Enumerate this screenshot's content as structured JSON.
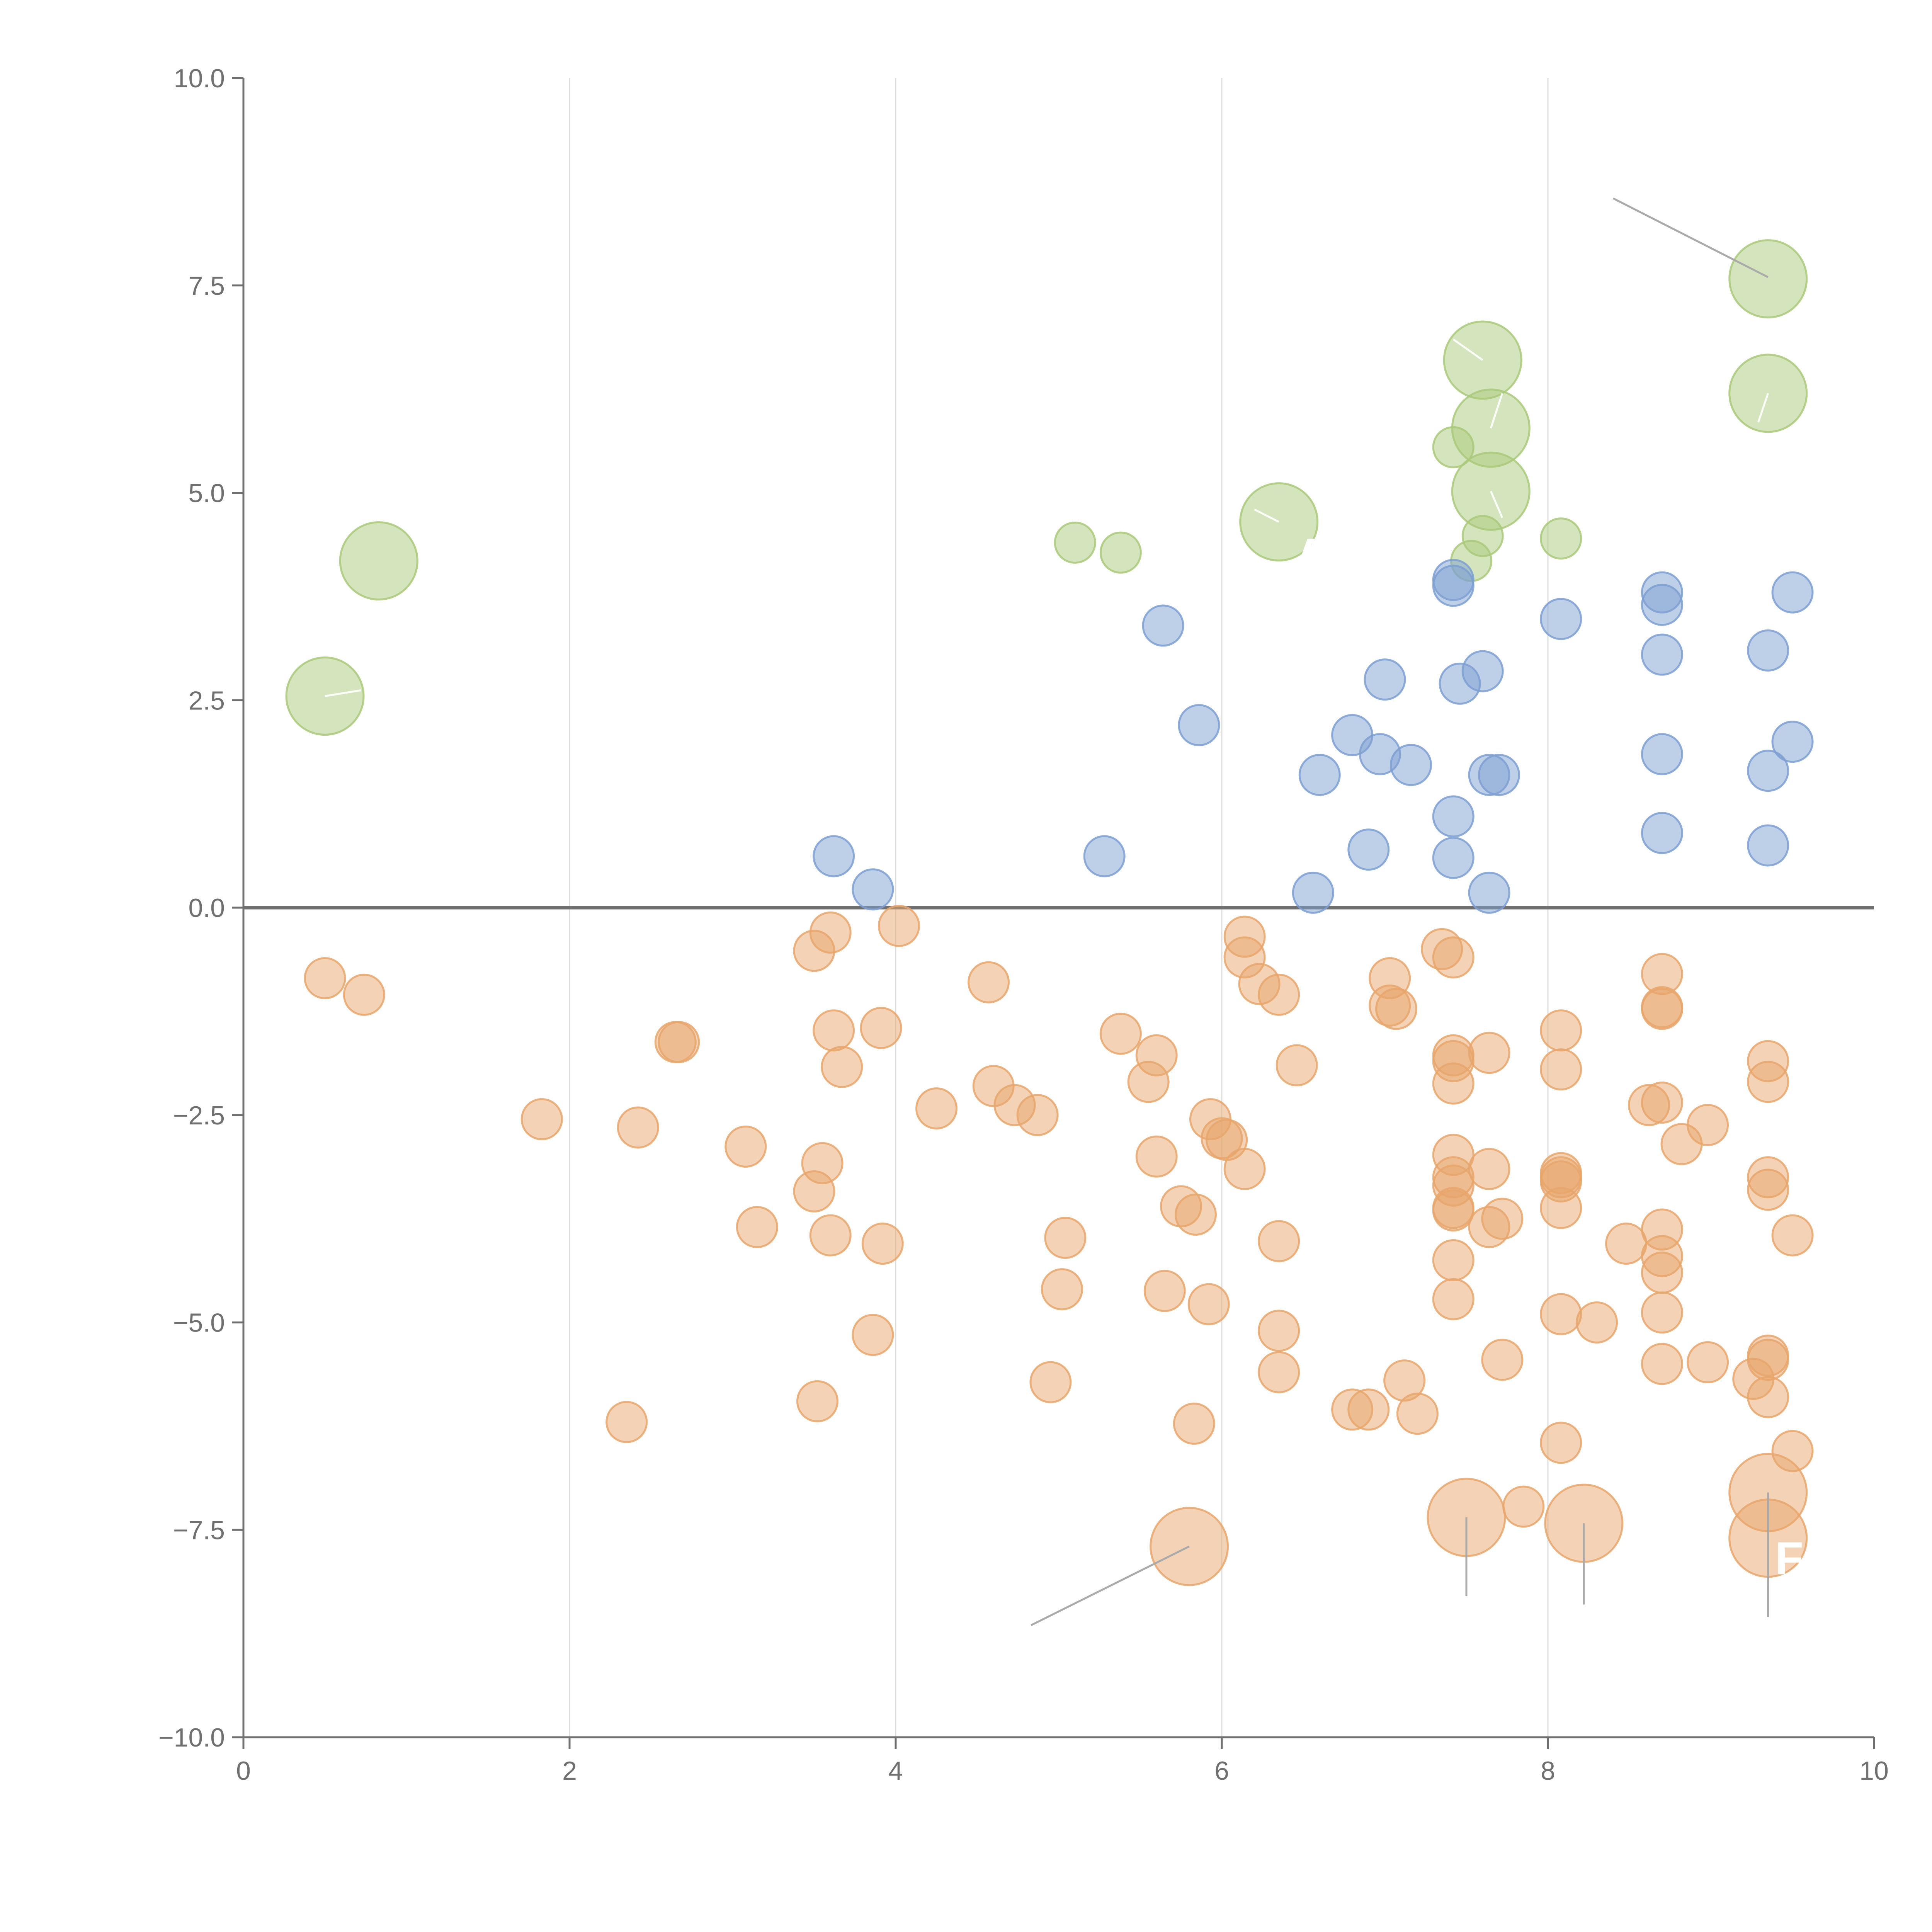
{
  "chart_data": {
    "type": "scatter",
    "title": "",
    "xlabel": "",
    "ylabel": "",
    "xlim": [
      0,
      10
    ],
    "ylim": [
      -10,
      10
    ],
    "x_ticks": [
      "0",
      "2",
      "4",
      "6",
      "8",
      "10"
    ],
    "x_tick_values": [
      0,
      2,
      4,
      6,
      8,
      10
    ],
    "y_ticks": [
      "10.0",
      "7.5",
      "5.0",
      "2.5",
      "0.0",
      "−2.5",
      "−5.0",
      "−7.5",
      "−10.0"
    ],
    "y_tick_values": [
      10,
      7.5,
      5,
      2.5,
      0,
      -2.5,
      -5,
      -7.5,
      -10
    ],
    "grid": "vertical",
    "legend": "none",
    "reference_line_y": 0,
    "colors": {
      "green": "#a9c97a",
      "blue": "#7d9fd2",
      "orange": "#e8a66b",
      "axis": "#707070",
      "grid": "#dddddd",
      "leader": "#aaaaaa",
      "label": "#ffffff"
    },
    "series": [
      {
        "name": "green",
        "color": "#a9c97a",
        "points": [
          [
            0.5,
            2.55,
            2
          ],
          [
            0.83,
            4.18,
            2
          ],
          [
            5.1,
            4.4,
            1
          ],
          [
            5.38,
            4.28,
            1
          ],
          [
            6.35,
            4.65,
            2
          ],
          [
            7.42,
            5.55,
            1
          ],
          [
            7.53,
            4.18,
            1
          ],
          [
            7.6,
            4.48,
            1
          ],
          [
            7.6,
            6.6,
            2
          ],
          [
            7.65,
            5.78,
            2
          ],
          [
            7.65,
            5.02,
            2
          ],
          [
            8.08,
            4.45,
            1
          ],
          [
            9.35,
            7.58,
            2
          ],
          [
            9.35,
            6.2,
            2
          ]
        ]
      },
      {
        "name": "blue",
        "color": "#7d9fd2",
        "points": [
          [
            3.62,
            0.62,
            1
          ],
          [
            3.86,
            0.22,
            1
          ],
          [
            5.28,
            0.62,
            1
          ],
          [
            5.64,
            3.4,
            1
          ],
          [
            5.86,
            2.2,
            1
          ],
          [
            6.56,
            0.18,
            1
          ],
          [
            6.6,
            1.6,
            1
          ],
          [
            6.8,
            2.08,
            1
          ],
          [
            6.9,
            0.7,
            1
          ],
          [
            6.97,
            1.85,
            1
          ],
          [
            7.0,
            2.75,
            1
          ],
          [
            7.16,
            1.72,
            1
          ],
          [
            7.42,
            3.95,
            1
          ],
          [
            7.42,
            3.88,
            1
          ],
          [
            7.42,
            1.1,
            1
          ],
          [
            7.42,
            0.6,
            1
          ],
          [
            7.46,
            2.7,
            1
          ],
          [
            7.6,
            2.85,
            1
          ],
          [
            7.64,
            1.6,
            1
          ],
          [
            7.7,
            1.6,
            1
          ],
          [
            7.64,
            0.18,
            1
          ],
          [
            8.08,
            3.48,
            1
          ],
          [
            8.7,
            3.8,
            1
          ],
          [
            8.7,
            3.65,
            1
          ],
          [
            8.7,
            3.05,
            1
          ],
          [
            8.7,
            1.85,
            1
          ],
          [
            8.7,
            0.9,
            1
          ],
          [
            9.35,
            3.1,
            1
          ],
          [
            9.35,
            1.65,
            1
          ],
          [
            9.35,
            0.75,
            1
          ],
          [
            9.5,
            3.8,
            1
          ],
          [
            9.5,
            2.0,
            1
          ]
        ]
      },
      {
        "name": "orange",
        "color": "#e8a66b",
        "points": [
          [
            0.5,
            -0.85,
            1
          ],
          [
            0.74,
            -1.05,
            1
          ],
          [
            1.83,
            -2.55,
            1
          ],
          [
            2.35,
            -6.2,
            1
          ],
          [
            2.42,
            -2.65,
            1
          ],
          [
            2.65,
            -1.62,
            1
          ],
          [
            2.67,
            -1.62,
            1
          ],
          [
            3.08,
            -2.88,
            1
          ],
          [
            3.15,
            -3.85,
            1
          ],
          [
            3.5,
            -0.52,
            1
          ],
          [
            3.52,
            -5.95,
            1
          ],
          [
            3.5,
            -3.42,
            1
          ],
          [
            3.55,
            -3.08,
            1
          ],
          [
            3.6,
            -0.3,
            1
          ],
          [
            3.6,
            -3.95,
            1
          ],
          [
            3.62,
            -1.48,
            1
          ],
          [
            3.67,
            -1.92,
            1
          ],
          [
            3.86,
            -5.15,
            1
          ],
          [
            3.91,
            -1.45,
            1
          ],
          [
            3.92,
            -4.05,
            1
          ],
          [
            4.02,
            -0.22,
            1
          ],
          [
            4.25,
            -2.42,
            1
          ],
          [
            4.57,
            -0.9,
            1
          ],
          [
            4.6,
            -2.15,
            1
          ],
          [
            4.73,
            -2.38,
            1
          ],
          [
            4.87,
            -2.5,
            1
          ],
          [
            4.95,
            -5.72,
            1
          ],
          [
            5.02,
            -4.6,
            1
          ],
          [
            5.04,
            -3.98,
            1
          ],
          [
            5.38,
            -1.52,
            1
          ],
          [
            5.55,
            -2.1,
            1
          ],
          [
            5.6,
            -1.78,
            1
          ],
          [
            5.6,
            -3.0,
            1
          ],
          [
            5.65,
            -4.62,
            1
          ],
          [
            5.75,
            -3.6,
            1
          ],
          [
            5.84,
            -3.7,
            1
          ],
          [
            5.83,
            -6.22,
            1
          ],
          [
            5.92,
            -4.78,
            1
          ],
          [
            5.93,
            -2.55,
            1
          ],
          [
            6.0,
            -2.78,
            1
          ],
          [
            6.03,
            -2.8,
            1
          ],
          [
            6.14,
            -0.35,
            1
          ],
          [
            6.14,
            -0.6,
            1
          ],
          [
            6.14,
            -3.15,
            1
          ],
          [
            6.23,
            -0.92,
            1
          ],
          [
            6.35,
            -1.05,
            1
          ],
          [
            6.35,
            -4.02,
            1
          ],
          [
            6.35,
            -5.1,
            1
          ],
          [
            6.35,
            -5.6,
            1
          ],
          [
            6.46,
            -1.9,
            1
          ],
          [
            6.8,
            -6.05,
            1
          ],
          [
            6.9,
            -6.05,
            1
          ],
          [
            7.03,
            -0.85,
            1
          ],
          [
            7.03,
            -1.18,
            1
          ],
          [
            7.07,
            -1.22,
            1
          ],
          [
            7.12,
            -5.7,
            1
          ],
          [
            7.2,
            -6.1,
            1
          ],
          [
            7.35,
            -0.5,
            1
          ],
          [
            7.42,
            -0.6,
            1
          ],
          [
            7.42,
            -1.78,
            1
          ],
          [
            7.42,
            -1.85,
            1
          ],
          [
            7.42,
            -2.12,
            1
          ],
          [
            7.42,
            -2.98,
            1
          ],
          [
            7.42,
            -3.25,
            1
          ],
          [
            7.42,
            -3.35,
            1
          ],
          [
            7.42,
            -3.62,
            1
          ],
          [
            7.42,
            -3.65,
            1
          ],
          [
            7.42,
            -4.25,
            1
          ],
          [
            7.42,
            -4.72,
            1
          ],
          [
            7.64,
            -1.75,
            1
          ],
          [
            7.64,
            -3.15,
            1
          ],
          [
            7.64,
            -3.85,
            1
          ],
          [
            7.72,
            -3.75,
            1
          ],
          [
            7.72,
            -5.45,
            1
          ],
          [
            7.85,
            -7.22,
            1
          ],
          [
            8.08,
            -1.48,
            1
          ],
          [
            8.08,
            -1.95,
            1
          ],
          [
            8.08,
            -3.2,
            1
          ],
          [
            8.08,
            -3.25,
            1
          ],
          [
            8.08,
            -3.3,
            1
          ],
          [
            8.08,
            -3.62,
            1
          ],
          [
            8.08,
            -4.9,
            1
          ],
          [
            8.08,
            -6.45,
            1
          ],
          [
            8.3,
            -5.0,
            1
          ],
          [
            8.48,
            -4.05,
            1
          ],
          [
            8.62,
            -2.38,
            1
          ],
          [
            8.7,
            -0.8,
            1
          ],
          [
            8.7,
            -1.2,
            1
          ],
          [
            8.7,
            -1.22,
            1
          ],
          [
            8.7,
            -2.35,
            1
          ],
          [
            8.7,
            -3.88,
            1
          ],
          [
            8.7,
            -4.2,
            1
          ],
          [
            8.7,
            -4.4,
            1
          ],
          [
            8.7,
            -4.88,
            1
          ],
          [
            8.7,
            -5.5,
            1
          ],
          [
            8.82,
            -2.85,
            1
          ],
          [
            8.98,
            -2.62,
            1
          ],
          [
            8.98,
            -5.48,
            1
          ],
          [
            9.26,
            -5.68,
            1
          ],
          [
            9.35,
            -1.85,
            1
          ],
          [
            9.35,
            -2.1,
            1
          ],
          [
            9.35,
            -3.25,
            1
          ],
          [
            9.35,
            -3.4,
            1
          ],
          [
            9.35,
            -5.4,
            1
          ],
          [
            9.35,
            -5.45,
            1
          ],
          [
            9.35,
            -5.9,
            1
          ],
          [
            9.5,
            -3.95,
            1
          ],
          [
            9.5,
            -6.55,
            1
          ],
          [
            5.8,
            -7.7,
            2
          ],
          [
            7.5,
            -7.35,
            2
          ],
          [
            8.22,
            -7.42,
            2
          ],
          [
            9.35,
            -7.05,
            2
          ],
          [
            9.35,
            -7.6,
            2
          ]
        ]
      }
    ],
    "annotations": [
      {
        "label": "A",
        "x": 6.35,
        "y": 4.65,
        "text_x": 6.55,
        "text_y": 4.25
      },
      {
        "label": "F",
        "x": 9.35,
        "y": -7.6,
        "text_x": 9.48,
        "text_y": -7.85
      }
    ],
    "leader_lines": [
      [
        [
          8.4,
          8.55
        ],
        [
          9.35,
          7.6
        ]
      ],
      [
        [
          5.8,
          -7.7
        ],
        [
          4.83,
          -8.65
        ]
      ],
      [
        [
          7.5,
          -7.35
        ],
        [
          7.5,
          -8.3
        ]
      ],
      [
        [
          8.22,
          -7.42
        ],
        [
          8.22,
          -8.4
        ]
      ],
      [
        [
          9.35,
          -7.05
        ],
        [
          9.35,
          -8.55
        ]
      ]
    ],
    "white_leader_lines": [
      [
        [
          0.5,
          2.55
        ],
        [
          0.72,
          2.62
        ]
      ],
      [
        [
          7.6,
          6.6
        ],
        [
          7.42,
          6.85
        ]
      ],
      [
        [
          7.65,
          5.78
        ],
        [
          7.72,
          6.2
        ]
      ],
      [
        [
          7.65,
          5.02
        ],
        [
          7.72,
          4.7
        ]
      ],
      [
        [
          6.35,
          4.65
        ],
        [
          6.2,
          4.8
        ]
      ],
      [
        [
          9.35,
          6.2
        ],
        [
          9.29,
          5.85
        ]
      ]
    ]
  }
}
